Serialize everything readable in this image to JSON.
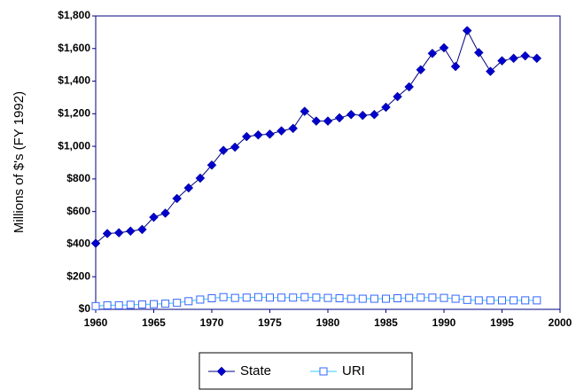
{
  "chart_data": {
    "type": "line",
    "y_label": "Millions of $'s (FY 1992)",
    "x": [
      1960,
      1961,
      1962,
      1963,
      1964,
      1965,
      1966,
      1967,
      1968,
      1969,
      1970,
      1971,
      1972,
      1973,
      1974,
      1975,
      1976,
      1977,
      1978,
      1979,
      1980,
      1981,
      1982,
      1983,
      1984,
      1985,
      1986,
      1987,
      1988,
      1989,
      1990,
      1991,
      1992,
      1993,
      1994,
      1995,
      1996,
      1997,
      1998
    ],
    "series": [
      {
        "name": "State",
        "color": "#0000cc",
        "marker": "diamond",
        "values": [
          405,
          465,
          470,
          480,
          490,
          565,
          590,
          680,
          745,
          805,
          885,
          975,
          995,
          1060,
          1070,
          1075,
          1095,
          1110,
          1215,
          1155,
          1155,
          1175,
          1195,
          1190,
          1195,
          1240,
          1305,
          1365,
          1470,
          1570,
          1605,
          1490,
          1710,
          1575,
          1460,
          1525,
          1540,
          1555,
          1540
        ]
      },
      {
        "name": "URI",
        "color": "#33ccff",
        "marker": "square",
        "values": [
          20,
          25,
          25,
          28,
          30,
          32,
          35,
          40,
          50,
          60,
          68,
          75,
          70,
          72,
          75,
          72,
          72,
          72,
          75,
          72,
          70,
          68,
          65,
          65,
          65,
          65,
          68,
          70,
          72,
          72,
          70,
          65,
          58,
          55,
          55,
          55,
          55,
          55,
          55
        ]
      }
    ],
    "xlim": [
      1960,
      2000
    ],
    "xticks": [
      1960,
      1965,
      1970,
      1975,
      1980,
      1985,
      1990,
      1995,
      2000
    ],
    "ylim": [
      0,
      1800
    ],
    "yticks": [
      {
        "value": 0,
        "label": "$0"
      },
      {
        "value": 200,
        "label": "$200"
      },
      {
        "value": 400,
        "label": "$400"
      },
      {
        "value": 600,
        "label": "$600"
      },
      {
        "value": 800,
        "label": "$800"
      },
      {
        "value": 1000,
        "label": "$1,000"
      },
      {
        "value": 1200,
        "label": "$1,200"
      },
      {
        "value": 1400,
        "label": "$1,400"
      },
      {
        "value": 1600,
        "label": "$1,600"
      },
      {
        "value": 1800,
        "label": "$1,800"
      }
    ],
    "legend": "bottom"
  }
}
